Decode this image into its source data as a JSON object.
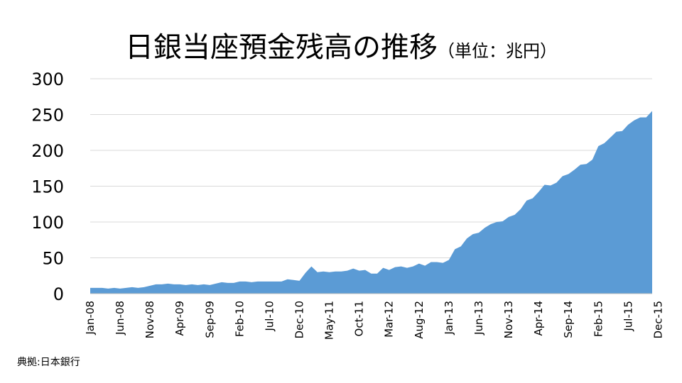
{
  "chart_data": {
    "type": "area",
    "title": "日銀当座預金残高の推移",
    "subtitle": "（単位：兆円）",
    "source": "典拠:日本銀行",
    "color": "#5b9bd5",
    "ylim": [
      0,
      300
    ],
    "yticks": [
      0,
      50,
      100,
      150,
      200,
      250,
      300
    ],
    "grid": true,
    "x_tick_labels": [
      "Jan-08",
      "Jun-08",
      "Nov-08",
      "Apr-09",
      "Sep-09",
      "Feb-10",
      "Jul-10",
      "Dec-10",
      "May-11",
      "Oct-11",
      "Mar-12",
      "Aug-12",
      "Jan-13",
      "Jun-13",
      "Nov-13",
      "Apr-14",
      "Sep-14",
      "Feb-15",
      "Jul-15",
      "Dec-15"
    ],
    "x_tick_every": 5,
    "values": [
      8,
      8,
      8,
      7,
      8,
      7,
      8,
      9,
      8,
      9,
      11,
      13,
      13,
      14,
      13,
      13,
      12,
      13,
      12,
      13,
      12,
      14,
      16,
      15,
      15,
      17,
      17,
      16,
      17,
      17,
      17,
      17,
      17,
      20,
      19,
      18,
      29,
      38,
      30,
      31,
      30,
      31,
      31,
      32,
      35,
      32,
      33,
      28,
      28,
      36,
      33,
      37,
      38,
      36,
      38,
      42,
      39,
      44,
      44,
      43,
      47,
      62,
      66,
      77,
      83,
      85,
      92,
      97,
      100,
      101,
      107,
      110,
      118,
      130,
      133,
      142,
      152,
      151,
      155,
      164,
      167,
      173,
      180,
      181,
      187,
      206,
      210,
      218,
      226,
      227,
      236,
      242,
      246,
      246,
      255
    ]
  }
}
